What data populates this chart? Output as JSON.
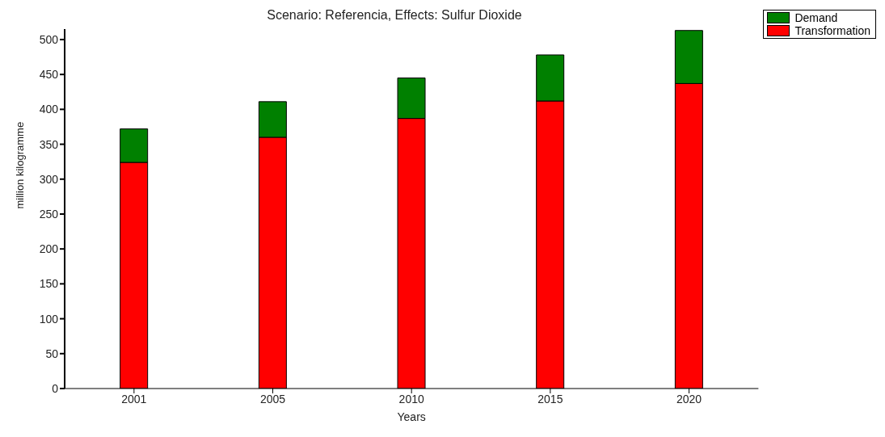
{
  "chart_data": {
    "type": "bar",
    "title": "Scenario: Referencia,  Effects: Sulfur Dioxide",
    "xlabel": "Years",
    "ylabel": "million  kilogramme",
    "categories": [
      "2001",
      "2005",
      "2010",
      "2015",
      "2020"
    ],
    "stacked": true,
    "series": [
      {
        "name": "Transformation",
        "color": "#ff0000",
        "values": [
          324,
          360,
          387,
          412,
          437
        ]
      },
      {
        "name": "Demand",
        "color": "#008000",
        "values": [
          48,
          51,
          58,
          66,
          76
        ]
      }
    ],
    "ylim": [
      0,
      515
    ],
    "yticks": [
      0,
      50,
      100,
      150,
      200,
      250,
      300,
      350,
      400,
      450,
      500
    ],
    "grid": false,
    "legend": "top right"
  }
}
